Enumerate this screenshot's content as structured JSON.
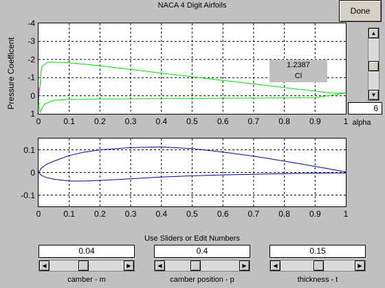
{
  "window": {
    "title": "NACA 4 Digit Airfoils"
  },
  "done_label": "Done",
  "top_plot": {
    "ylabel": "Pressure Coefficent",
    "yticks": [
      "-4",
      "-3",
      "-2",
      "-1",
      "0",
      "1"
    ],
    "xticks": [
      "0",
      "0.1",
      "0.2",
      "0.3",
      "0.4",
      "0.5",
      "0.6",
      "0.7",
      "0.8",
      "0.9",
      "1"
    ],
    "cl_value": "1.2387",
    "cl_label": "Cl"
  },
  "alpha": {
    "value": "6",
    "label": "alpha",
    "slider_fraction": 0.55
  },
  "bottom_plot": {
    "yticks": [
      "0.1",
      "0",
      "-0.1"
    ],
    "xticks": [
      "0",
      "0.1",
      "0.2",
      "0.3",
      "0.4",
      "0.5",
      "0.6",
      "0.7",
      "0.8",
      "0.9",
      "1"
    ]
  },
  "controls": {
    "heading": "Use Sliders or Edit Numbers",
    "camber": {
      "value": "0.04",
      "label": "camber - m",
      "slider_fraction": 0.45
    },
    "camber_position": {
      "value": "0.4",
      "label": "camber position - p",
      "slider_fraction": 0.4
    },
    "thickness": {
      "value": "0.15",
      "label": "thickness - t",
      "slider_fraction": 0.52
    }
  },
  "chart_data": [
    {
      "type": "line",
      "xlim": [
        0,
        1
      ],
      "ylim": [
        1,
        -4
      ],
      "y_reversed": true,
      "grid": true,
      "series": [
        {
          "color": "#00e000",
          "x": [
            0,
            0.01,
            0.03,
            0.05,
            0.1,
            0.2,
            0.3,
            0.4,
            0.5,
            0.6,
            0.7,
            0.8,
            0.9,
            0.95,
            1.0
          ],
          "y": [
            0.3,
            -1.6,
            -1.85,
            -1.85,
            -1.82,
            -1.65,
            -1.45,
            -1.25,
            -1.05,
            -0.85,
            -0.65,
            -0.45,
            -0.25,
            -0.15,
            -0.15
          ]
        },
        {
          "color": "#00e000",
          "x": [
            0,
            0.005,
            0.02,
            0.05,
            0.1,
            0.2,
            0.3,
            0.4,
            0.5,
            0.6,
            0.7,
            0.8,
            0.9,
            1.0
          ],
          "y": [
            0.3,
            0.9,
            0.45,
            0.25,
            0.2,
            0.18,
            0.17,
            0.16,
            0.15,
            0.14,
            0.13,
            0.12,
            0.11,
            -0.15
          ]
        },
        {
          "color": "#ff00ff",
          "x": [
            0,
            0,
            0.005
          ],
          "y": [
            0.3,
            -0.3,
            -0.5
          ]
        }
      ]
    },
    {
      "type": "line",
      "xlim": [
        0,
        1
      ],
      "ylim": [
        -0.15,
        0.15
      ],
      "grid": true,
      "series": [
        {
          "color": "#0000a0",
          "x": [
            0,
            0.01,
            0.025,
            0.05,
            0.1,
            0.15,
            0.2,
            0.3,
            0.4,
            0.5,
            0.6,
            0.7,
            0.8,
            0.9,
            0.95,
            1.0
          ],
          "y": [
            0,
            0.02,
            0.035,
            0.05,
            0.075,
            0.09,
            0.1,
            0.11,
            0.113,
            0.105,
            0.09,
            0.072,
            0.05,
            0.027,
            0.015,
            0.002
          ]
        },
        {
          "color": "#0000a0",
          "x": [
            0,
            0.01,
            0.025,
            0.05,
            0.1,
            0.15,
            0.2,
            0.3,
            0.4,
            0.5,
            0.6,
            0.7,
            0.8,
            0.9,
            0.95,
            1.0
          ],
          "y": [
            0,
            -0.013,
            -0.022,
            -0.03,
            -0.038,
            -0.038,
            -0.035,
            -0.028,
            -0.02,
            -0.015,
            -0.011,
            -0.008,
            -0.005,
            -0.003,
            -0.002,
            -0.002
          ]
        }
      ]
    }
  ]
}
